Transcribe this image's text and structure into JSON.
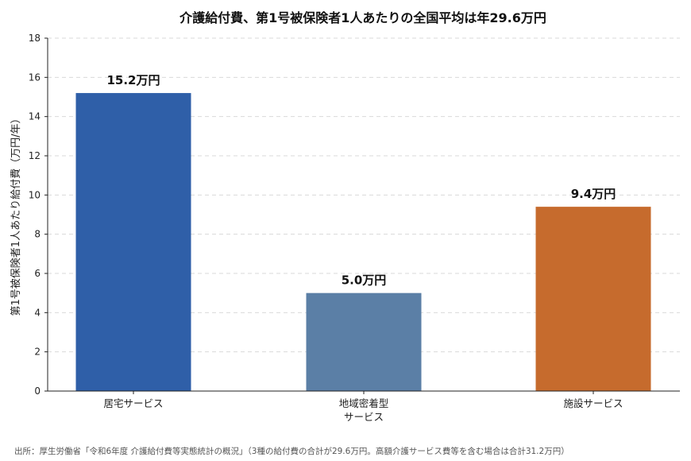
{
  "chart_data": {
    "type": "bar",
    "title": "介護給付費、第1号被保険者1人あたりの全国平均は年29.6万円",
    "ylabel": "第1号被保険者1人あたり給付費（万円/年）",
    "xlabel": "",
    "ylim": [
      0,
      18
    ],
    "yticks": [
      0,
      2,
      4,
      6,
      8,
      10,
      12,
      14,
      16,
      18
    ],
    "grid": true,
    "categories": [
      [
        "居宅サービス"
      ],
      [
        "地域密着型",
        "サービス"
      ],
      [
        "施設サービス"
      ]
    ],
    "values": [
      15.2,
      5.0,
      9.4
    ],
    "data_labels": [
      "15.2万円",
      "5.0万円",
      "9.4万円"
    ],
    "colors": [
      "#2f5fa8",
      "#5b7fa6",
      "#c66b2d"
    ]
  },
  "source": "出所：厚生労働省「令和6年度 介護給付費等実態統計の概況」（3種の給付費の合計が29.6万円。高額介護サービス費等を含む場合は合計31.2万円）"
}
